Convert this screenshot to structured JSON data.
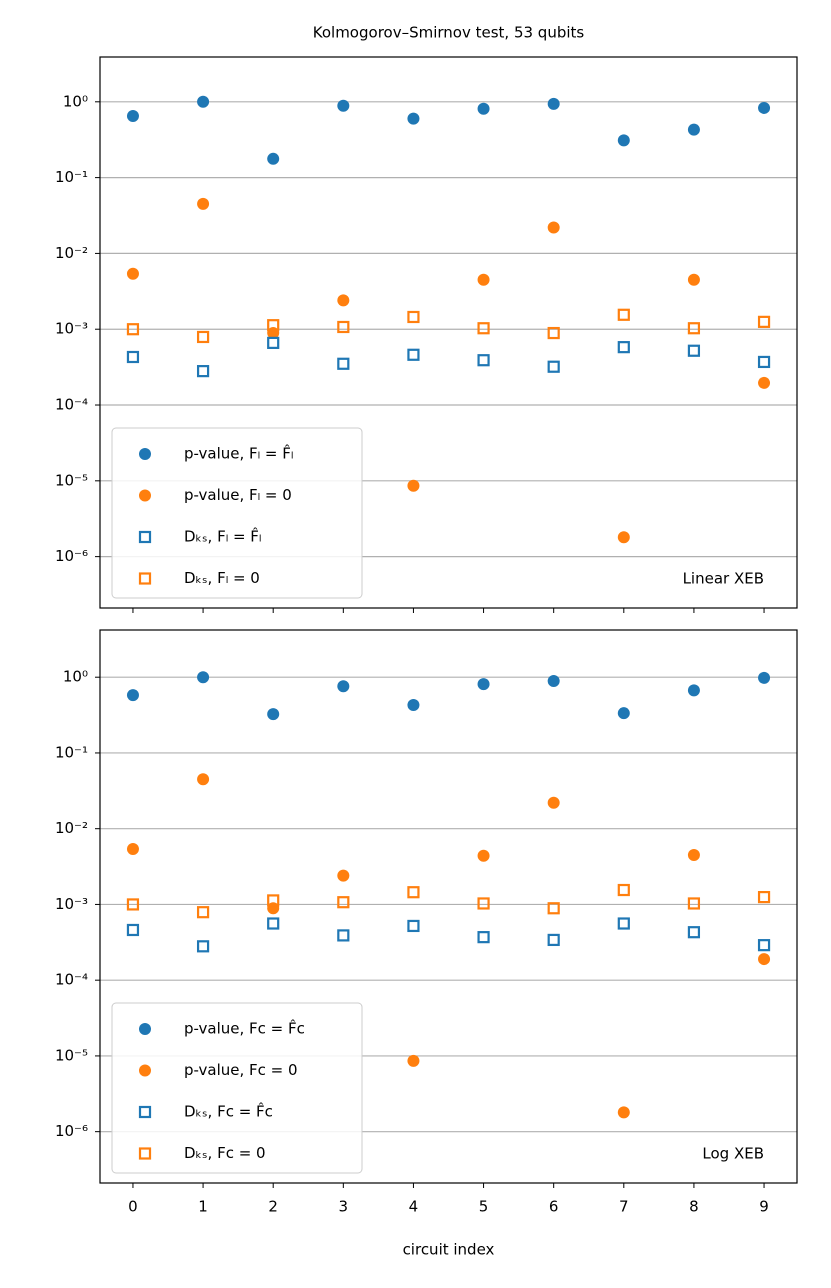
{
  "chart_data": [
    {
      "type": "scatter",
      "title": "Kolmogorov–Smirnov test, 53 qubits",
      "annotation": "Linear XEB",
      "x": [
        0,
        1,
        2,
        3,
        4,
        5,
        6,
        7,
        8,
        9
      ],
      "xlim": [
        -0.47,
        9.47
      ],
      "xticks": [
        0,
        1,
        2,
        3,
        4,
        5,
        6,
        7,
        8,
        9
      ],
      "xticklabels": false,
      "ylim": [
        2.1e-07,
        3.9
      ],
      "log_y": true,
      "grid": true,
      "legend": "lower left",
      "yticks": [
        {
          "value": 1e-06,
          "label": "10⁻⁶"
        },
        {
          "value": 1e-05,
          "label": "10⁻⁵"
        },
        {
          "value": 0.0001,
          "label": "10⁻⁴"
        },
        {
          "value": 0.001,
          "label": "10⁻³"
        },
        {
          "value": 0.01,
          "label": "10⁻²"
        },
        {
          "value": 0.1,
          "label": "10⁻¹"
        },
        {
          "value": 1,
          "label": "10⁰"
        }
      ],
      "series": [
        {
          "name": "p-value, Fₗ = F̂ₗ",
          "color": "#1f77b4",
          "marker": "o",
          "values": [
            0.65,
            1.0,
            0.177,
            0.886,
            0.6,
            0.81,
            0.94,
            0.31,
            0.43,
            0.83
          ]
        },
        {
          "name": "p-value, Fₗ = 0",
          "color": "#ff7f0e",
          "marker": "o",
          "values": [
            0.0054,
            0.045,
            0.00089,
            0.0024,
            8.6e-06,
            0.0045,
            0.022,
            1.8e-06,
            0.0045,
            0.000196
          ]
        },
        {
          "name": "Dₖₛ, Fₗ = F̂ₗ",
          "color": "#1f77b4",
          "marker": "s",
          "values": [
            0.00043,
            0.00028,
            0.00066,
            0.00035,
            0.00046,
            0.00039,
            0.00032,
            0.00058,
            0.00052,
            0.00037
          ]
        },
        {
          "name": "Dₖₛ, Fₗ = 0",
          "color": "#ff7f0e",
          "marker": "s",
          "values": [
            0.001,
            0.00079,
            0.00113,
            0.00107,
            0.00145,
            0.00103,
            0.00089,
            0.00155,
            0.00103,
            0.00125
          ]
        }
      ]
    },
    {
      "type": "scatter",
      "annotation": "Log XEB",
      "xlabel": "circuit index",
      "x": [
        0,
        1,
        2,
        3,
        4,
        5,
        6,
        7,
        8,
        9
      ],
      "xlim": [
        -0.47,
        9.47
      ],
      "xticks": [
        0,
        1,
        2,
        3,
        4,
        5,
        6,
        7,
        8,
        9
      ],
      "xticklabels": true,
      "ylim": [
        2.1e-07,
        4.2
      ],
      "log_y": true,
      "grid": true,
      "legend": "lower left",
      "yticks": [
        {
          "value": 1e-06,
          "label": "10⁻⁶"
        },
        {
          "value": 1e-05,
          "label": "10⁻⁵"
        },
        {
          "value": 0.0001,
          "label": "10⁻⁴"
        },
        {
          "value": 0.001,
          "label": "10⁻³"
        },
        {
          "value": 0.01,
          "label": "10⁻²"
        },
        {
          "value": 0.1,
          "label": "10⁻¹"
        },
        {
          "value": 1,
          "label": "10⁰"
        }
      ],
      "series": [
        {
          "name": "p-value, Fc = F̂c",
          "color": "#1f77b4",
          "marker": "o",
          "values": [
            0.58,
            1.0,
            0.325,
            0.76,
            0.43,
            0.81,
            0.89,
            0.335,
            0.67,
            0.98
          ]
        },
        {
          "name": "p-value, Fc = 0",
          "color": "#ff7f0e",
          "marker": "o",
          "values": [
            0.0054,
            0.045,
            0.00089,
            0.0024,
            8.6e-06,
            0.0044,
            0.022,
            1.8e-06,
            0.0045,
            0.00019
          ]
        },
        {
          "name": "Dₖₛ, Fc = F̂c",
          "color": "#1f77b4",
          "marker": "s",
          "values": [
            0.00046,
            0.00028,
            0.00056,
            0.00039,
            0.00052,
            0.00037,
            0.00034,
            0.00056,
            0.00043,
            0.00029
          ]
        },
        {
          "name": "Dₖₛ, Fc = 0",
          "color": "#ff7f0e",
          "marker": "s",
          "values": [
            0.001,
            0.00079,
            0.00113,
            0.00107,
            0.00145,
            0.00103,
            0.00089,
            0.00155,
            0.00103,
            0.00125
          ]
        }
      ]
    }
  ]
}
